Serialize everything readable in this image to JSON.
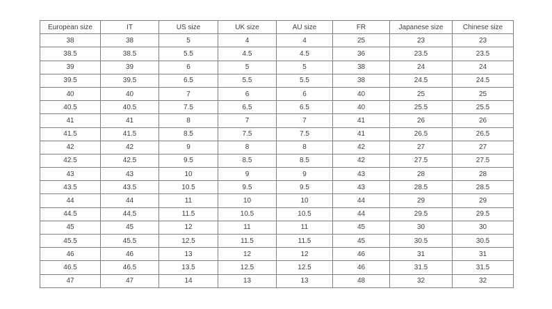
{
  "table": {
    "headers": [
      "European size",
      "IT",
      "US size",
      "UK size",
      "AU size",
      "FR",
      "Japanese size",
      "Chinese size"
    ],
    "rows": [
      [
        "38",
        "38",
        "5",
        "4",
        "4",
        "25",
        "23",
        "23"
      ],
      [
        "38.5",
        "38.5",
        "5.5",
        "4.5",
        "4.5",
        "36",
        "23.5",
        "23.5"
      ],
      [
        "39",
        "39",
        "6",
        "5",
        "5",
        "38",
        "24",
        "24"
      ],
      [
        "39.5",
        "39.5",
        "6.5",
        "5.5",
        "5.5",
        "38",
        "24.5",
        "24.5"
      ],
      [
        "40",
        "40",
        "7",
        "6",
        "6",
        "40",
        "25",
        "25"
      ],
      [
        "40.5",
        "40.5",
        "7.5",
        "6.5",
        "6.5",
        "40",
        "25.5",
        "25.5"
      ],
      [
        "41",
        "41",
        "8",
        "7",
        "7",
        "41",
        "26",
        "26"
      ],
      [
        "41.5",
        "41.5",
        "8.5",
        "7.5",
        "7.5",
        "41",
        "26.5",
        "26.5"
      ],
      [
        "42",
        "42",
        "9",
        "8",
        "8",
        "42",
        "27",
        "27"
      ],
      [
        "42.5",
        "42.5",
        "9.5",
        "8.5",
        "8.5",
        "42",
        "27.5",
        "27.5"
      ],
      [
        "43",
        "43",
        "10",
        "9",
        "9",
        "43",
        "28",
        "28"
      ],
      [
        "43.5",
        "43.5",
        "10.5",
        "9.5",
        "9.5",
        "43",
        "28.5",
        "28.5"
      ],
      [
        "44",
        "44",
        "11",
        "10",
        "10",
        "44",
        "29",
        "29"
      ],
      [
        "44.5",
        "44.5",
        "11.5",
        "10.5",
        "10.5",
        "44",
        "29.5",
        "29.5"
      ],
      [
        "45",
        "45",
        "12",
        "11",
        "11",
        "45",
        "30",
        "30"
      ],
      [
        "45.5",
        "45.5",
        "12.5",
        "11.5",
        "11.5",
        "45",
        "30.5",
        "30.5"
      ],
      [
        "46",
        "46",
        "13",
        "12",
        "12",
        "46",
        "31",
        "31"
      ],
      [
        "46.5",
        "46.5",
        "13.5",
        "12.5",
        "12.5",
        "46",
        "31.5",
        "31.5"
      ],
      [
        "47",
        "47",
        "14",
        "13",
        "13",
        "48",
        "32",
        "32"
      ]
    ],
    "colors": {
      "border": "#808080",
      "text": "#3d3d3d",
      "background": "#ffffff"
    }
  }
}
